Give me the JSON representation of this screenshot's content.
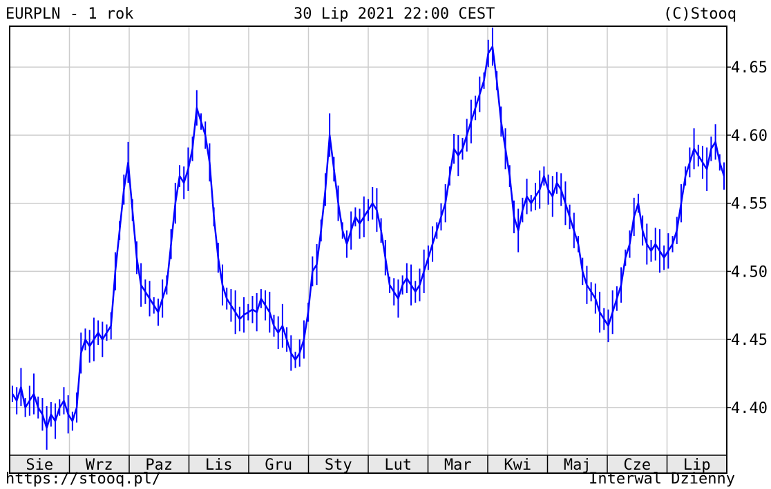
{
  "header": {
    "symbol_title": "EURPLN - 1 rok",
    "datetime": "30 Lip 2021 22:00 CEST",
    "copyright": "(C)Stooq"
  },
  "footer": {
    "url": "https://stooq.pl/",
    "interval": "Interwal Dzienny"
  },
  "colors": {
    "series": "#0000ff",
    "grid": "#cccccc",
    "axis": "#000000",
    "month_bar": "#e8e8e8"
  },
  "chart_data": {
    "type": "line",
    "grid": true,
    "ylim": [
      4.365,
      4.68
    ],
    "y_ticks": [
      4.4,
      4.45,
      4.5,
      4.55,
      4.6,
      4.65
    ],
    "y_tick_labels": [
      "4.40",
      "4.45",
      "4.50",
      "4.55",
      "4.60",
      "4.65"
    ],
    "x_ticks": [
      "Sie",
      "Wrz",
      "Paz",
      "Lis",
      "Gru",
      "Sty",
      "Lut",
      "Mar",
      "Kwi",
      "Maj",
      "Cze",
      "Lip"
    ],
    "series": [
      {
        "values": [
          4.41,
          4.405,
          4.415,
          4.4,
          4.405,
          4.41,
          4.4,
          4.395,
          4.385,
          4.395,
          4.39,
          4.4,
          4.405,
          4.395,
          4.39,
          4.4,
          4.44,
          4.45,
          4.445,
          4.45,
          4.455,
          4.45,
          4.455,
          4.46,
          4.5,
          4.53,
          4.56,
          4.58,
          4.545,
          4.51,
          4.49,
          4.485,
          4.48,
          4.475,
          4.47,
          4.48,
          4.49,
          4.52,
          4.55,
          4.57,
          4.565,
          4.575,
          4.59,
          4.62,
          4.61,
          4.6,
          4.58,
          4.54,
          4.51,
          4.49,
          4.48,
          4.475,
          4.47,
          4.465,
          4.468,
          4.47,
          4.472,
          4.47,
          4.48,
          4.475,
          4.47,
          4.46,
          4.455,
          4.46,
          4.45,
          4.44,
          4.435,
          4.44,
          4.45,
          4.47,
          4.5,
          4.505,
          4.53,
          4.56,
          4.6,
          4.575,
          4.55,
          4.53,
          4.52,
          4.53,
          4.54,
          4.535,
          4.54,
          4.545,
          4.55,
          4.545,
          4.53,
          4.51,
          4.49,
          4.485,
          4.48,
          4.49,
          4.495,
          4.49,
          4.485,
          4.49,
          4.5,
          4.51,
          4.52,
          4.53,
          4.54,
          4.55,
          4.57,
          4.59,
          4.585,
          4.59,
          4.6,
          4.61,
          4.62,
          4.63,
          4.64,
          4.66,
          4.665,
          4.64,
          4.61,
          4.59,
          4.57,
          4.54,
          4.53,
          4.545,
          4.555,
          4.55,
          4.555,
          4.56,
          4.57,
          4.56,
          4.555,
          4.565,
          4.56,
          4.55,
          4.54,
          4.53,
          4.52,
          4.5,
          4.49,
          4.485,
          4.48,
          4.47,
          4.465,
          4.46,
          4.47,
          4.48,
          4.49,
          4.51,
          4.52,
          4.54,
          4.55,
          4.53,
          4.52,
          4.515,
          4.52,
          4.515,
          4.51,
          4.515,
          4.52,
          4.53,
          4.55,
          4.57,
          4.58,
          4.59,
          4.585,
          4.58,
          4.575,
          4.59,
          4.595,
          4.58,
          4.57
        ]
      }
    ]
  }
}
